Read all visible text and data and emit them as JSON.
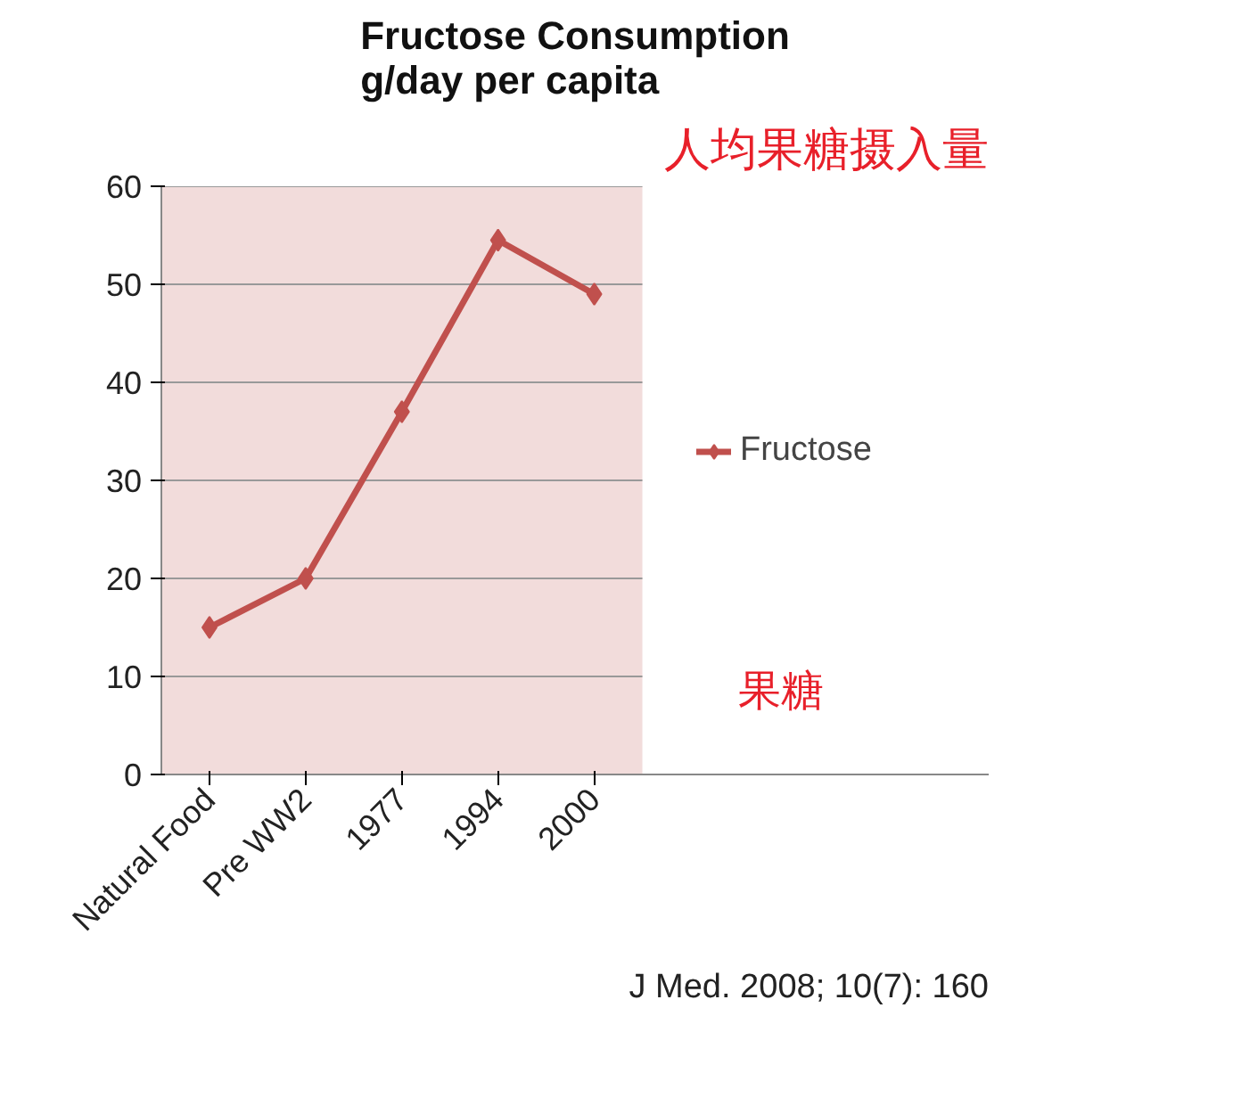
{
  "chart_data": {
    "type": "line",
    "title": "Fructose Consumption\ng/day per capita",
    "subtitle": "人均果糖摄入量",
    "categories": [
      "Natural Food",
      "Pre WW2",
      "1977",
      "1994",
      "2000"
    ],
    "series": [
      {
        "name": "Fructose",
        "color": "#c0504d",
        "values": [
          15,
          20,
          37,
          54.5,
          49
        ]
      }
    ],
    "ylim": [
      0,
      60
    ],
    "yticks": [
      0,
      10,
      20,
      30,
      40,
      50,
      60
    ],
    "grid": "y",
    "legend": "right",
    "marker": "diamond",
    "line_style": "solid",
    "annotations": [
      "果糖",
      "J Med. 2008; 10(7): 160"
    ]
  }
}
